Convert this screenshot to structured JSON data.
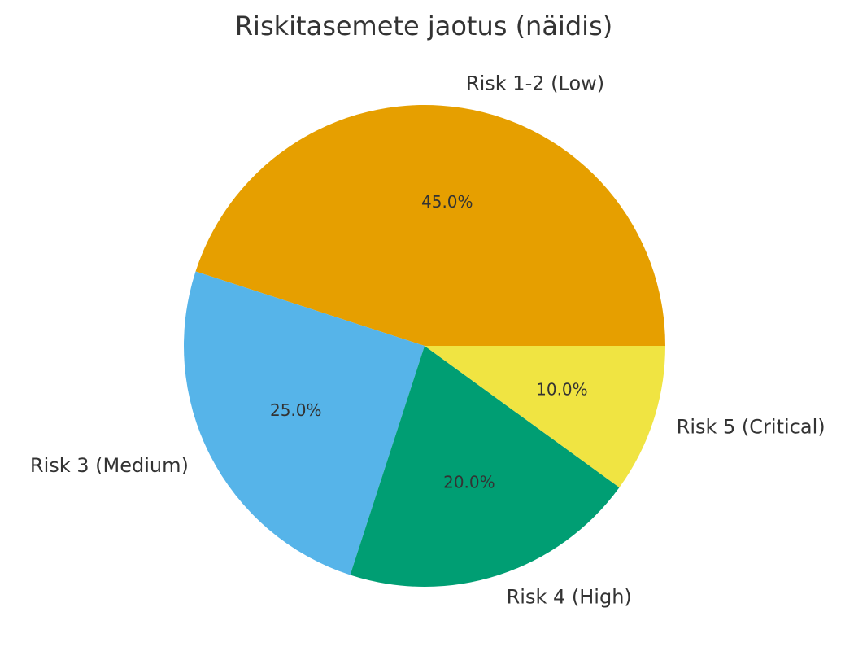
{
  "chart_data": {
    "type": "pie",
    "title": "Riskitasemete jaotus (näidis)",
    "start_angle_deg": 0,
    "direction": "counterclockwise",
    "slices": [
      {
        "label": "Risk 1-2 (Low)",
        "value": 45.0,
        "pct_label": "45.0%",
        "color": "#E69F00"
      },
      {
        "label": "Risk 3 (Medium)",
        "value": 25.0,
        "pct_label": "25.0%",
        "color": "#56B4E9"
      },
      {
        "label": "Risk 4 (High)",
        "value": 20.0,
        "pct_label": "20.0%",
        "color": "#009E73"
      },
      {
        "label": "Risk 5 (Critical)",
        "value": 10.0,
        "pct_label": "10.0%",
        "color": "#F0E442"
      }
    ]
  }
}
